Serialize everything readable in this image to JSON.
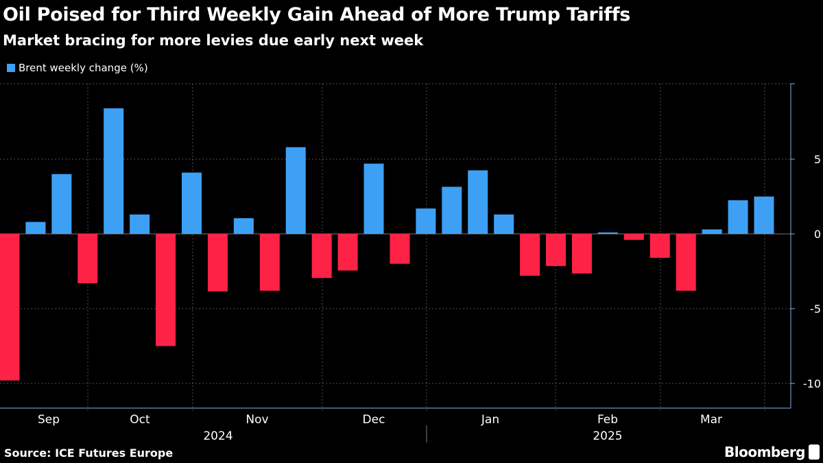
{
  "title": "Oil Poised for Third Weekly Gain Ahead of More Trump Tariffs",
  "subtitle": "Market bracing for more levies due early next week",
  "source": "Source: ICE Futures Europe",
  "brand": "Bloomberg",
  "chart_data": {
    "type": "bar",
    "title": "Oil Poised for Third Weekly Gain Ahead of More Trump Tariffs",
    "subtitle": "Market bracing for more levies due early next week",
    "legend": "top-left",
    "series": [
      {
        "name": "Brent weekly change (%)",
        "values": [
          -9.8,
          0.8,
          4.0,
          -3.3,
          8.4,
          1.3,
          -7.5,
          4.1,
          -3.85,
          1.05,
          -3.8,
          5.8,
          -2.95,
          -2.45,
          4.7,
          -2.0,
          1.7,
          3.15,
          4.25,
          1.3,
          -2.8,
          -2.15,
          -2.65,
          0.1,
          -0.4,
          -1.6,
          -3.8,
          0.3,
          2.25,
          2.5
        ]
      }
    ],
    "colors": {
      "positive": "#3ea0f5",
      "negative": "#ff2247"
    },
    "month_labels": [
      "Sep",
      "Oct",
      "Nov",
      "Dec",
      "Jan",
      "Feb",
      "Mar"
    ],
    "year_labels": [
      "2024",
      "2025"
    ],
    "yticks": [
      5,
      0,
      -5,
      -10
    ],
    "ytick_labels": [
      "5",
      "0",
      "-5",
      "-10"
    ],
    "ylim": [
      -10.8,
      10
    ],
    "grid": true,
    "y_axis_position": "right"
  }
}
